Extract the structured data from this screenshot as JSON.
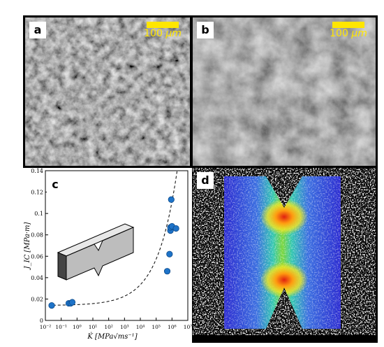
{
  "panels": {
    "a": {
      "label": "a",
      "scale_value": "100",
      "scale_unit": "μm",
      "scale_color": "#ffe600"
    },
    "b": {
      "label": "b",
      "scale_value": "100",
      "scale_unit": "μm",
      "scale_color": "#ffe600"
    },
    "c": {
      "label": "c"
    },
    "d": {
      "label": "d"
    }
  },
  "chart_data": {
    "type": "scatter",
    "xlabel": "K̇ [MPa√ms⁻¹]",
    "ylabel": "J_IC [MPa·m]",
    "xscale": "log",
    "xlim": [
      0.01,
      10000000
    ],
    "ylim": [
      0,
      0.14
    ],
    "x_tick_labels": [
      "10⁻²",
      "10⁻¹",
      "10⁰",
      "10¹",
      "10²",
      "10³",
      "10⁴",
      "10⁵",
      "10⁶",
      "10⁷"
    ],
    "y_tick_labels": [
      "0",
      "0.02",
      "0.04",
      "0.06",
      "0.08",
      "0.1",
      "0.12",
      "0.14"
    ],
    "grid": false,
    "series": [
      {
        "marker": "circle",
        "color": "#1e73c8",
        "x": [
          0.025,
          0.3,
          0.4,
          0.5,
          500000,
          700000,
          800000,
          800000,
          900000,
          1000000,
          1800000
        ],
        "y": [
          0.014,
          0.016,
          0.016,
          0.017,
          0.046,
          0.062,
          0.084,
          0.087,
          0.113,
          0.088,
          0.086
        ]
      }
    ],
    "fit_line": {
      "style": "dashed",
      "color": "#000000",
      "baseline": 0.014
    }
  }
}
